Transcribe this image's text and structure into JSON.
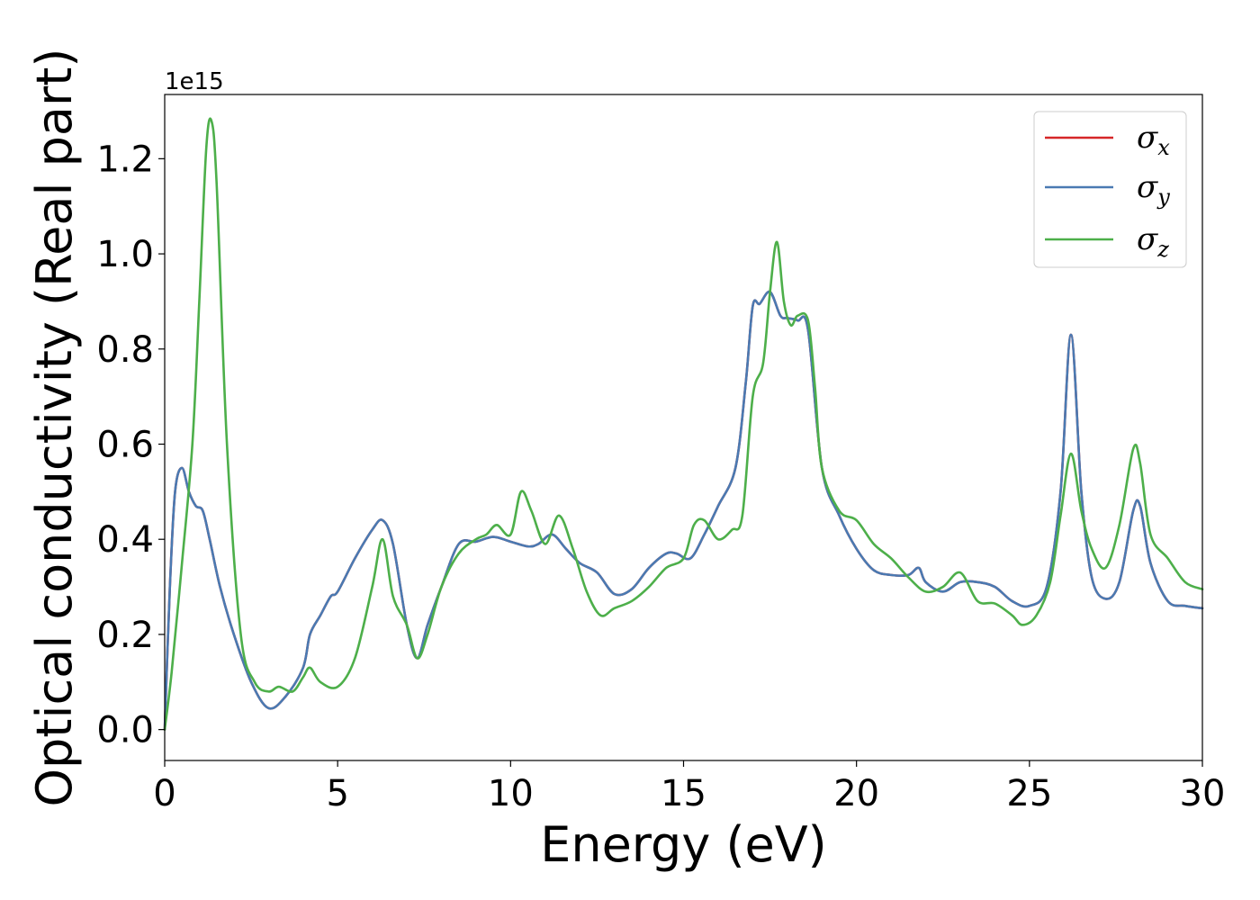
{
  "chart_data": {
    "type": "line",
    "xlabel": "Energy (eV)",
    "ylabel": "Optical conductivity (Real part)",
    "y_offset_label": "1e15",
    "xlim": [
      0,
      30
    ],
    "ylim": [
      -0.065,
      1.335
    ],
    "xticks": [
      0,
      5,
      10,
      15,
      20,
      25,
      30
    ],
    "xtick_labels": [
      "0",
      "5",
      "10",
      "15",
      "20",
      "25",
      "30"
    ],
    "yticks": [
      0.0,
      0.2,
      0.4,
      0.6,
      0.8,
      1.0,
      1.2
    ],
    "ytick_labels": [
      "0.0",
      "0.2",
      "0.4",
      "0.6",
      "0.8",
      "1.0",
      "1.2"
    ],
    "grid": false,
    "legend_position": "top-right",
    "series": [
      {
        "name": "σ_x",
        "symbol": "σ",
        "subscript": "x",
        "color": "#d62728",
        "x": [
          0,
          0.15,
          0.3,
          0.5,
          0.7,
          0.9,
          1.1,
          1.3,
          1.6,
          2.0,
          2.5,
          3.0,
          3.5,
          4.0,
          4.2,
          4.5,
          4.8,
          5.0,
          5.5,
          6.0,
          6.3,
          6.6,
          7.0,
          7.3,
          7.6,
          8.0,
          8.5,
          9.0,
          9.5,
          10.0,
          10.5,
          10.8,
          11.2,
          11.6,
          12.0,
          12.5,
          13.0,
          13.5,
          14.0,
          14.5,
          14.8,
          15.2,
          15.6,
          16.0,
          16.5,
          16.8,
          17.0,
          17.2,
          17.5,
          17.8,
          18.0,
          18.3,
          18.6,
          19.0,
          19.5,
          20.0,
          20.5,
          21.0,
          21.5,
          21.8,
          22.0,
          22.5,
          23.0,
          23.5,
          24.0,
          24.5,
          25.0,
          25.5,
          25.9,
          26.2,
          26.5,
          26.8,
          27.2,
          27.6,
          28.0,
          28.2,
          28.5,
          29.0,
          29.5,
          30.0
        ],
        "y": [
          0.0,
          0.3,
          0.5,
          0.55,
          0.5,
          0.47,
          0.46,
          0.4,
          0.3,
          0.2,
          0.1,
          0.045,
          0.07,
          0.13,
          0.2,
          0.24,
          0.28,
          0.29,
          0.36,
          0.42,
          0.44,
          0.39,
          0.22,
          0.15,
          0.22,
          0.3,
          0.39,
          0.395,
          0.405,
          0.395,
          0.385,
          0.39,
          0.41,
          0.38,
          0.35,
          0.33,
          0.285,
          0.295,
          0.34,
          0.37,
          0.37,
          0.36,
          0.41,
          0.47,
          0.55,
          0.73,
          0.89,
          0.895,
          0.92,
          0.87,
          0.865,
          0.86,
          0.84,
          0.55,
          0.45,
          0.38,
          0.335,
          0.325,
          0.325,
          0.34,
          0.31,
          0.29,
          0.31,
          0.31,
          0.3,
          0.27,
          0.26,
          0.3,
          0.5,
          0.83,
          0.5,
          0.32,
          0.275,
          0.31,
          0.46,
          0.47,
          0.35,
          0.27,
          0.26,
          0.255
        ]
      },
      {
        "name": "σ_y",
        "symbol": "σ",
        "subscript": "y",
        "color": "#4a7ab2",
        "x": [
          0,
          0.15,
          0.3,
          0.5,
          0.7,
          0.9,
          1.1,
          1.3,
          1.6,
          2.0,
          2.5,
          3.0,
          3.5,
          4.0,
          4.2,
          4.5,
          4.8,
          5.0,
          5.5,
          6.0,
          6.3,
          6.6,
          7.0,
          7.3,
          7.6,
          8.0,
          8.5,
          9.0,
          9.5,
          10.0,
          10.5,
          10.8,
          11.2,
          11.6,
          12.0,
          12.5,
          13.0,
          13.5,
          14.0,
          14.5,
          14.8,
          15.2,
          15.6,
          16.0,
          16.5,
          16.8,
          17.0,
          17.2,
          17.5,
          17.8,
          18.0,
          18.3,
          18.6,
          19.0,
          19.5,
          20.0,
          20.5,
          21.0,
          21.5,
          21.8,
          22.0,
          22.5,
          23.0,
          23.5,
          24.0,
          24.5,
          25.0,
          25.5,
          25.9,
          26.2,
          26.5,
          26.8,
          27.2,
          27.6,
          28.0,
          28.2,
          28.5,
          29.0,
          29.5,
          30.0
        ],
        "y": [
          0.0,
          0.3,
          0.5,
          0.55,
          0.5,
          0.47,
          0.46,
          0.4,
          0.3,
          0.2,
          0.1,
          0.045,
          0.07,
          0.13,
          0.2,
          0.24,
          0.28,
          0.29,
          0.36,
          0.42,
          0.44,
          0.39,
          0.22,
          0.15,
          0.22,
          0.3,
          0.39,
          0.395,
          0.405,
          0.395,
          0.385,
          0.39,
          0.41,
          0.38,
          0.35,
          0.33,
          0.285,
          0.295,
          0.34,
          0.37,
          0.37,
          0.36,
          0.41,
          0.47,
          0.55,
          0.73,
          0.89,
          0.895,
          0.92,
          0.87,
          0.865,
          0.86,
          0.84,
          0.55,
          0.45,
          0.38,
          0.335,
          0.325,
          0.325,
          0.34,
          0.31,
          0.29,
          0.31,
          0.31,
          0.3,
          0.27,
          0.26,
          0.3,
          0.5,
          0.83,
          0.5,
          0.32,
          0.275,
          0.31,
          0.46,
          0.47,
          0.35,
          0.27,
          0.26,
          0.255
        ]
      },
      {
        "name": "σ_z",
        "symbol": "σ",
        "subscript": "z",
        "color": "#4daf4a",
        "x": [
          0,
          0.2,
          0.5,
          0.8,
          1.0,
          1.2,
          1.35,
          1.5,
          1.8,
          2.2,
          2.6,
          3.0,
          3.3,
          3.7,
          4.0,
          4.2,
          4.5,
          5.0,
          5.5,
          6.0,
          6.3,
          6.6,
          7.0,
          7.3,
          7.6,
          8.0,
          8.5,
          9.0,
          9.3,
          9.6,
          10.0,
          10.3,
          10.6,
          11.0,
          11.4,
          11.8,
          12.2,
          12.6,
          13.0,
          13.5,
          14.0,
          14.5,
          15.0,
          15.3,
          15.6,
          16.0,
          16.4,
          16.7,
          17.0,
          17.3,
          17.5,
          17.7,
          17.9,
          18.1,
          18.3,
          18.6,
          18.8,
          19.0,
          19.5,
          20.0,
          20.5,
          21.0,
          21.5,
          22.0,
          22.5,
          23.0,
          23.5,
          24.0,
          24.5,
          24.8,
          25.2,
          25.6,
          25.9,
          26.2,
          26.5,
          26.8,
          27.2,
          27.6,
          28.0,
          28.2,
          28.5,
          29.0,
          29.5,
          30.0
        ],
        "y": [
          0.0,
          0.12,
          0.35,
          0.6,
          0.9,
          1.22,
          1.28,
          1.15,
          0.6,
          0.2,
          0.1,
          0.08,
          0.09,
          0.08,
          0.11,
          0.13,
          0.1,
          0.09,
          0.15,
          0.3,
          0.4,
          0.28,
          0.22,
          0.15,
          0.2,
          0.3,
          0.37,
          0.4,
          0.41,
          0.43,
          0.41,
          0.5,
          0.46,
          0.39,
          0.45,
          0.38,
          0.29,
          0.24,
          0.255,
          0.27,
          0.3,
          0.34,
          0.36,
          0.43,
          0.44,
          0.4,
          0.42,
          0.45,
          0.7,
          0.77,
          0.92,
          1.025,
          0.9,
          0.85,
          0.87,
          0.86,
          0.72,
          0.55,
          0.46,
          0.44,
          0.39,
          0.36,
          0.32,
          0.29,
          0.3,
          0.33,
          0.27,
          0.265,
          0.24,
          0.22,
          0.24,
          0.31,
          0.45,
          0.58,
          0.46,
          0.38,
          0.34,
          0.43,
          0.59,
          0.56,
          0.41,
          0.36,
          0.31,
          0.295
        ]
      }
    ]
  }
}
